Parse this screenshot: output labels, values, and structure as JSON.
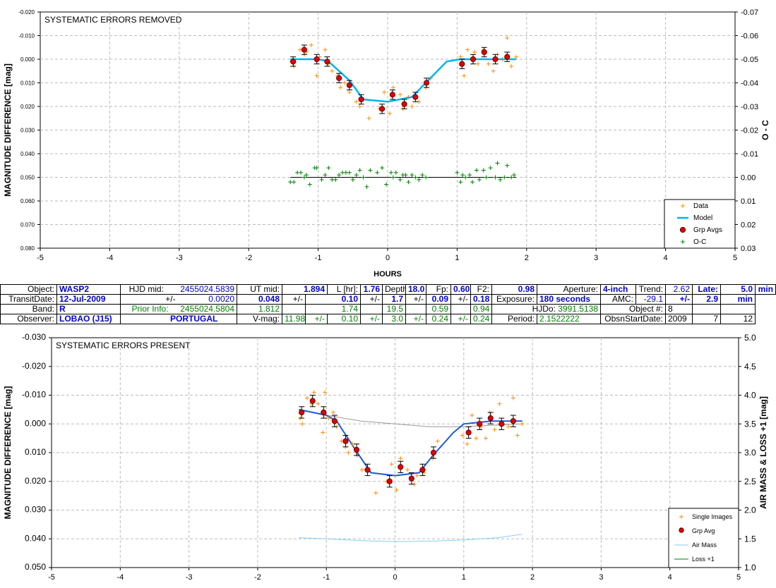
{
  "colors": {
    "data": "#ff8c00",
    "model": "#00b4f0",
    "grp": "#e00000",
    "oc": "#008000",
    "airmass": "#87cefa",
    "loss": "#008000",
    "model2": "#1e5adc",
    "trend": "#999999"
  },
  "chart_data": [
    {
      "type": "scatter",
      "title": "SYSTEMATIC ERRORS REMOVED",
      "xlabel": "HOURS",
      "ylabel": "MAGNITUDE DIFFERENCE [mag]",
      "ylabel_right": "O - C",
      "xlim": [
        -5,
        5
      ],
      "ylim": [
        -0.02,
        0.08
      ],
      "y_inverted": true,
      "ylim_right": [
        -0.07,
        0.03
      ],
      "x_ticks": [
        "-5",
        "-4",
        "-3",
        "-2",
        "-1",
        "0",
        "1",
        "2",
        "3",
        "4",
        "5"
      ],
      "y_ticks": [
        "-0.020",
        "-0.010",
        "0.000",
        "0.010",
        "0.020",
        "0.030",
        "0.040",
        "0.050",
        "0.060",
        "0.070",
        "0.080"
      ],
      "y_ticks_right": [
        "-0.07",
        "-0.06",
        "-0.05",
        "-0.04",
        "-0.03",
        "-0.02",
        "-0.01",
        "0.00",
        "0.01",
        "0.02",
        "0.03"
      ],
      "grid": true,
      "legend_position": "bottom-right",
      "legend": [
        "Data",
        "Model",
        "Grp Avgs",
        "O-C"
      ],
      "series": [
        {
          "name": "Data",
          "x": [
            -1.38,
            -1.35,
            -1.26,
            -1.2,
            -1.17,
            -1.1,
            -1.02,
            -0.98,
            -0.9,
            -0.85,
            -0.8,
            -0.72,
            -0.68,
            -0.62,
            -0.55,
            -0.45,
            -0.4,
            -0.35,
            -0.27,
            -0.12,
            -0.05,
            0.03,
            0.08,
            0.18,
            0.22,
            0.3,
            0.35,
            0.45,
            0.55,
            0.62,
            1.05,
            1.1,
            1.15,
            1.25,
            1.3,
            1.38,
            1.45,
            1.52,
            1.58,
            1.65,
            1.72,
            1.78,
            1.85
          ],
          "y": [
            0.001,
            0.003,
            -0.004,
            -0.002,
            -0.003,
            -0.006,
            0.007,
            -0.001,
            -0.004,
            0.002,
            0.005,
            0.007,
            0.012,
            0.01,
            0.014,
            0.018,
            0.02,
            0.017,
            0.025,
            0.021,
            0.014,
            0.023,
            0.012,
            0.015,
            0.021,
            0.016,
            0.02,
            0.018,
            0.012,
            0.008,
            -0.001,
            0.007,
            -0.004,
            -0.003,
            0.002,
            -0.004,
            0.002,
            0.005,
            -0.002,
            0.0,
            -0.009,
            0.003,
            -0.001
          ]
        },
        {
          "name": "Model",
          "x": [
            -1.4,
            -1.0,
            -0.85,
            -0.55,
            -0.35,
            0.0,
            0.35,
            0.55,
            0.85,
            1.05,
            1.4,
            1.85
          ],
          "y": [
            0.0,
            0.0,
            0.001,
            0.009,
            0.017,
            0.018,
            0.016,
            0.01,
            0.001,
            0.0,
            0.0,
            0.0
          ]
        },
        {
          "name": "Grp Avgs",
          "x": [
            -1.36,
            -1.2,
            -1.02,
            -0.87,
            -0.7,
            -0.55,
            -0.38,
            -0.08,
            0.07,
            0.24,
            0.4,
            0.56,
            1.07,
            1.23,
            1.39,
            1.55,
            1.72
          ],
          "y": [
            0.001,
            -0.004,
            0.0,
            0.001,
            0.008,
            0.011,
            0.017,
            0.021,
            0.015,
            0.019,
            0.016,
            0.01,
            0.002,
            0.0,
            -0.003,
            0.0,
            -0.001
          ],
          "err": 0.002
        },
        {
          "name": "O-C",
          "axis": "right",
          "x": [
            -1.4,
            -1.35,
            -1.3,
            -1.25,
            -1.2,
            -1.17,
            -1.12,
            -1.05,
            -1.02,
            -0.95,
            -0.9,
            -0.85,
            -0.8,
            -0.75,
            -0.7,
            -0.65,
            -0.6,
            -0.55,
            -0.5,
            -0.45,
            -0.4,
            -0.35,
            -0.3,
            -0.25,
            -0.15,
            -0.08,
            -0.02,
            0.05,
            0.08,
            0.12,
            0.18,
            0.22,
            0.26,
            0.3,
            0.35,
            0.4,
            0.45,
            0.5,
            0.55,
            1.0,
            1.05,
            1.08,
            1.12,
            1.18,
            1.22,
            1.28,
            1.32,
            1.38,
            1.42,
            1.48,
            1.55,
            1.58,
            1.62,
            1.68,
            1.72,
            1.78,
            1.82
          ],
          "y": [
            0.002,
            0.002,
            -0.002,
            -0.002,
            0.0,
            -0.001,
            0.003,
            -0.004,
            -0.004,
            0.001,
            -0.001,
            -0.004,
            0.001,
            0.001,
            -0.001,
            -0.002,
            -0.002,
            -0.002,
            0.001,
            -0.001,
            -0.003,
            0.0,
            0.004,
            -0.003,
            -0.002,
            -0.004,
            0.003,
            -0.002,
            0.0,
            -0.002,
            0.001,
            -0.001,
            -0.001,
            0.002,
            -0.001,
            0.0,
            0.001,
            -0.001,
            0.0,
            -0.002,
            0.002,
            -0.001,
            0.0,
            -0.001,
            0.002,
            -0.003,
            0.001,
            -0.003,
            0.0,
            -0.004,
            0.0,
            -0.006,
            0.001,
            0.0,
            -0.005,
            0.0,
            -0.001
          ]
        }
      ]
    },
    {
      "type": "scatter",
      "title": "SYSTEMATIC ERRORS PRESENT",
      "xlabel": "",
      "ylabel": "MAGNITUDE DIFFERENCE [mag]",
      "ylabel_right": "AIR MASS & LOSS +1 [mag]",
      "xlim": [
        -5,
        5
      ],
      "ylim": [
        -0.03,
        0.05
      ],
      "y_inverted": true,
      "ylim_right": [
        1.0,
        5.0
      ],
      "x_ticks": [
        "-5",
        "-4",
        "-3",
        "-2",
        "-1",
        "0",
        "1",
        "2",
        "3",
        "4",
        "5"
      ],
      "y_ticks": [
        "-0.030",
        "-0.020",
        "-0.010",
        "0.000",
        "0.010",
        "0.020",
        "0.030",
        "0.040",
        "0.050"
      ],
      "y_ticks_right": [
        "5.0",
        "4.5",
        "4.0",
        "3.5",
        "3.0",
        "2.5",
        "2.0",
        "1.5",
        "1.0"
      ],
      "grid": true,
      "legend_position": "bottom-right",
      "legend": [
        "Single Images",
        "Grp Avg",
        "Air Mass",
        "Loss +1"
      ],
      "series": [
        {
          "name": "Single Images",
          "x": [
            -1.38,
            -1.35,
            -1.28,
            -1.22,
            -1.18,
            -1.12,
            -1.05,
            -1.02,
            -0.97,
            -0.9,
            -0.85,
            -0.78,
            -0.72,
            -0.68,
            -0.62,
            -0.55,
            -0.48,
            -0.42,
            -0.28,
            -0.12,
            -0.05,
            0.02,
            0.08,
            0.18,
            0.28,
            0.32,
            0.42,
            0.55,
            0.62,
            0.98,
            1.05,
            1.12,
            1.18,
            1.25,
            1.32,
            1.38,
            1.45,
            1.52,
            1.58,
            1.65,
            1.72,
            1.78,
            1.85
          ],
          "y": [
            -0.002,
            0.0,
            -0.009,
            -0.007,
            -0.011,
            -0.007,
            0.003,
            -0.011,
            -0.002,
            -0.004,
            0.001,
            0.006,
            0.008,
            0.01,
            0.007,
            0.011,
            0.016,
            0.016,
            0.024,
            0.02,
            0.014,
            0.023,
            0.012,
            0.016,
            0.021,
            0.018,
            0.017,
            0.012,
            0.006,
            0.004,
            0.007,
            -0.003,
            0.005,
            0.001,
            0.005,
            -0.004,
            0.002,
            -0.007,
            0.0,
            0.001,
            -0.009,
            0.004,
            0.0
          ]
        },
        {
          "name": "Grp Avg",
          "x": [
            -1.36,
            -1.2,
            -1.04,
            -0.88,
            -0.72,
            -0.56,
            -0.4,
            -0.08,
            0.08,
            0.24,
            0.4,
            0.56,
            1.07,
            1.23,
            1.39,
            1.55,
            1.72
          ],
          "y": [
            -0.004,
            -0.008,
            -0.004,
            -0.001,
            0.006,
            0.009,
            0.016,
            0.02,
            0.015,
            0.019,
            0.016,
            0.01,
            0.003,
            0.0,
            -0.002,
            0.0,
            -0.001
          ],
          "err": 0.002
        },
        {
          "name": "Model",
          "x": [
            -1.4,
            -1.0,
            -0.85,
            -0.55,
            -0.35,
            0.0,
            0.35,
            0.55,
            0.85,
            1.0,
            1.4,
            1.85
          ],
          "y": [
            -0.005,
            -0.003,
            -0.001,
            0.01,
            0.017,
            0.018,
            0.017,
            0.011,
            0.003,
            0.0,
            -0.001,
            -0.001
          ]
        },
        {
          "name": "Trend",
          "x": [
            -1.4,
            -1.0,
            -0.5,
            0.0,
            0.5,
            1.0,
            1.4,
            1.85
          ],
          "y": [
            -0.005,
            -0.003,
            -0.001,
            0.0,
            0.001,
            0.001,
            0.0005,
            0.0
          ]
        },
        {
          "name": "Air Mass",
          "axis": "right",
          "x": [
            -1.4,
            -1.0,
            -0.5,
            0.0,
            0.5,
            1.0,
            1.5,
            1.85
          ],
          "y": [
            1.52,
            1.5,
            1.47,
            1.45,
            1.46,
            1.48,
            1.52,
            1.58
          ]
        }
      ]
    }
  ],
  "info": {
    "object_lbl": "Object:",
    "object": "WASP2",
    "hjdmid_lbl": "HJD mid:",
    "hjdmid": "2455024.5839",
    "utmid_lbl": "UT mid:",
    "utmid": "1.894",
    "lhr_lbl": "L [hr]:",
    "lhr": "1.76",
    "depth_lbl": "Depth:",
    "depth": "18.0",
    "fp_lbl": "Fp:",
    "fp": "0.60",
    "f2_lbl": "F2:",
    "f2": "0.98",
    "aperture_lbl": "Aperture:",
    "aperture": "4-inch",
    "trend_lbl": "Trend:",
    "trend": "2.62",
    "late_lbl": "Late:",
    "late": "5.0",
    "late_unit": "min",
    "transitdate_lbl": "TransitDate:",
    "transitdate": "12-Jul-2009",
    "pm1": "+/-",
    "hjd_err": "0.0020",
    "ut_err": "0.048",
    "pm2": "+/-",
    "lhr_err": "0.10",
    "pm3": "+/-",
    "depth_err": "1.7",
    "pm4": "+/-",
    "fp_err": "0.09",
    "pm5": "+/-",
    "f2_err": "0.18",
    "exposure_lbl": "Exposure:",
    "exposure": "180 seconds",
    "amc_lbl": "AMC:",
    "amc": "-29.1",
    "pm6": "+/-",
    "amc_err": "2.9",
    "amc_unit": "min",
    "band_lbl": "Band:",
    "band": "R",
    "prior_lbl": "Prior Info:",
    "prior_hjd": "2455024.5804",
    "prior_ut": "1.812",
    "prior_lhr": "1.74",
    "prior_depth": "19.5",
    "prior_fp": "0.59",
    "prior_f2": "0.94",
    "hjdo_lbl": "HJDo:",
    "hjdo": "3991.5138",
    "objnum_lbl": "Object #:",
    "objnum": "8",
    "observer_lbl": "Observer:",
    "observer": "LOBAO (J15)",
    "country": "PORTUGAL",
    "vmag_lbl": "V-mag:",
    "vmag": "11.98",
    "pm7": "+/-",
    "vmag_err": "0.10",
    "pm8": "+/-",
    "v_depth_err": "3.0",
    "pm9": "+/-",
    "v_fp_err": "0.24",
    "pm10": "+/-",
    "v_f2_err": "0.24",
    "period_lbl": "Period:",
    "period": "2.1522222",
    "obsstart_lbl": "ObsnStartDate:",
    "obs_y": "2009",
    "obs_m": "7",
    "obs_d": "12"
  }
}
